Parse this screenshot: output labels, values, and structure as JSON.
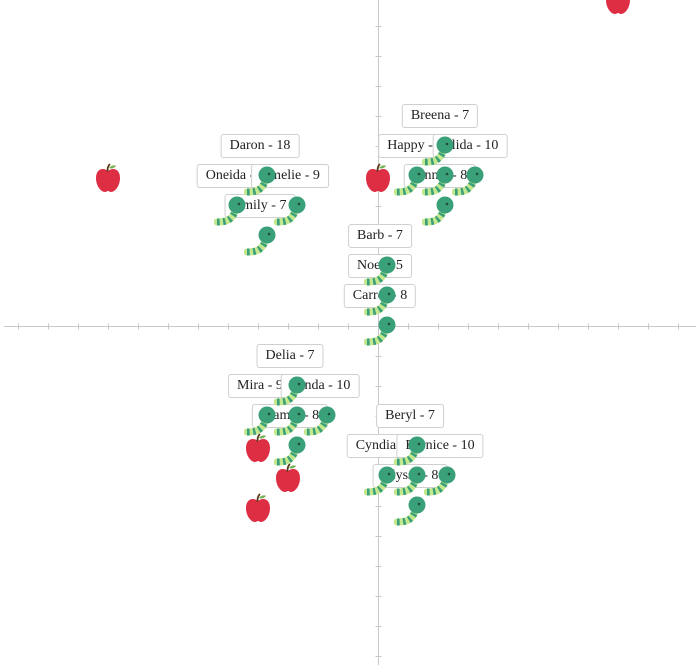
{
  "colors": {
    "axis": "#c8c8c8",
    "apple": "#dd2e44",
    "apple_stem": "#5b3a1a",
    "apple_leaf": "#77b255",
    "worm_head": "#3aa07a",
    "worm_body_light": "#c3e88d",
    "worm_body_stripe": "#3aa07a"
  },
  "labels": [
    {
      "id": "breena",
      "text": "Breena - 7"
    },
    {
      "id": "daron",
      "text": "Daron - 18"
    },
    {
      "id": "happy",
      "text": "Happy - "
    },
    {
      "id": "alida",
      "text": "Alida - 10"
    },
    {
      "id": "oneida",
      "text": "Oneida - "
    },
    {
      "id": "amelie",
      "text": "Amelie - 9"
    },
    {
      "id": "jennie",
      "text": "Jennie - 8"
    },
    {
      "id": "emily",
      "text": "Emily - 7"
    },
    {
      "id": "barb",
      "text": "Barb - 7"
    },
    {
      "id": "noel",
      "text": "Noel - 5"
    },
    {
      "id": "carrol",
      "text": "Carrol - 8"
    },
    {
      "id": "delia",
      "text": "Delia - 7"
    },
    {
      "id": "mira",
      "text": "Mira - 9"
    },
    {
      "id": "lynda",
      "text": "Lynda - 10"
    },
    {
      "id": "mamie",
      "text": "Mamie - 8"
    },
    {
      "id": "beryl",
      "text": "Beryl - 7"
    },
    {
      "id": "cyndia",
      "text": "Cyndia - "
    },
    {
      "id": "bernice",
      "text": "Bernice - 10"
    },
    {
      "id": "alyssa",
      "text": "Alyssa - 8"
    }
  ],
  "sprites": [
    {
      "kind": "apple",
      "name": "apple-icon"
    },
    {
      "kind": "apple",
      "name": "apple-icon"
    },
    {
      "kind": "apple",
      "name": "apple-icon"
    },
    {
      "kind": "apple",
      "name": "apple-icon"
    },
    {
      "kind": "apple",
      "name": "apple-icon"
    },
    {
      "kind": "apple",
      "name": "apple-icon"
    },
    {
      "kind": "worm",
      "name": "worm-icon"
    },
    {
      "kind": "worm",
      "name": "worm-icon"
    },
    {
      "kind": "worm",
      "name": "worm-icon"
    },
    {
      "kind": "worm",
      "name": "worm-icon"
    },
    {
      "kind": "worm",
      "name": "worm-icon"
    },
    {
      "kind": "worm",
      "name": "worm-icon"
    },
    {
      "kind": "worm",
      "name": "worm-icon"
    },
    {
      "kind": "worm",
      "name": "worm-icon"
    },
    {
      "kind": "worm",
      "name": "worm-icon"
    },
    {
      "kind": "worm",
      "name": "worm-icon"
    },
    {
      "kind": "worm",
      "name": "worm-icon"
    },
    {
      "kind": "worm",
      "name": "worm-icon"
    },
    {
      "kind": "worm",
      "name": "worm-icon"
    },
    {
      "kind": "worm",
      "name": "worm-icon"
    },
    {
      "kind": "worm",
      "name": "worm-icon"
    },
    {
      "kind": "worm",
      "name": "worm-icon"
    },
    {
      "kind": "worm",
      "name": "worm-icon"
    },
    {
      "kind": "worm",
      "name": "worm-icon"
    },
    {
      "kind": "worm",
      "name": "worm-icon"
    },
    {
      "kind": "worm",
      "name": "worm-icon"
    },
    {
      "kind": "worm",
      "name": "worm-icon"
    },
    {
      "kind": "worm",
      "name": "worm-icon"
    },
    {
      "kind": "worm",
      "name": "worm-icon"
    },
    {
      "kind": "worm",
      "name": "worm-icon"
    }
  ]
}
